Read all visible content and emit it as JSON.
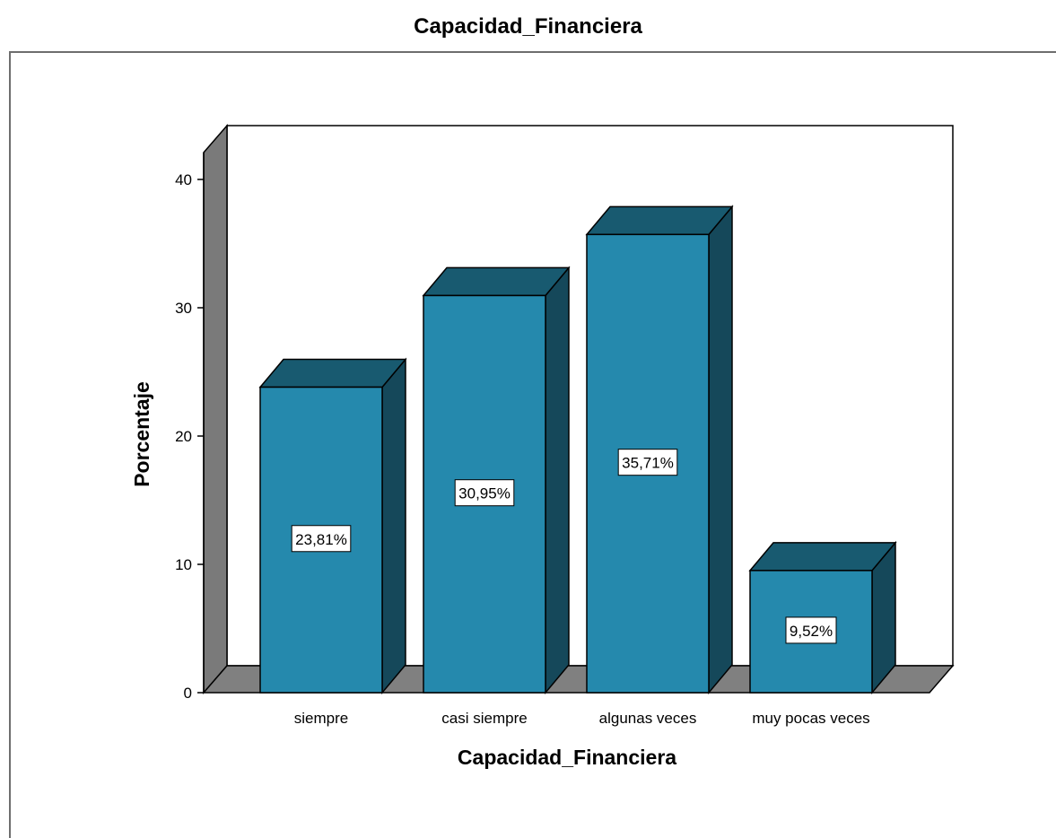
{
  "chart_data": {
    "type": "bar",
    "title": "Capacidad_Financiera",
    "xlabel": "Capacidad_Financiera",
    "ylabel": "Porcentaje",
    "categories": [
      "siempre",
      "casi siempre",
      "algunas veces",
      "muy pocas veces"
    ],
    "values": [
      23.81,
      30.95,
      35.71,
      9.52
    ],
    "data_labels": [
      "23,81%",
      "30,95%",
      "35,71%",
      "9,52%"
    ],
    "yticks": [
      "0",
      "10",
      "20",
      "30",
      "40"
    ],
    "ylim": [
      0,
      40
    ],
    "grid": false,
    "colors": {
      "bar_front": "#2589ad",
      "bar_top": "#185a70",
      "bar_side": "#15485a",
      "floor": "#808080",
      "wall": "#7a7a7a"
    }
  }
}
